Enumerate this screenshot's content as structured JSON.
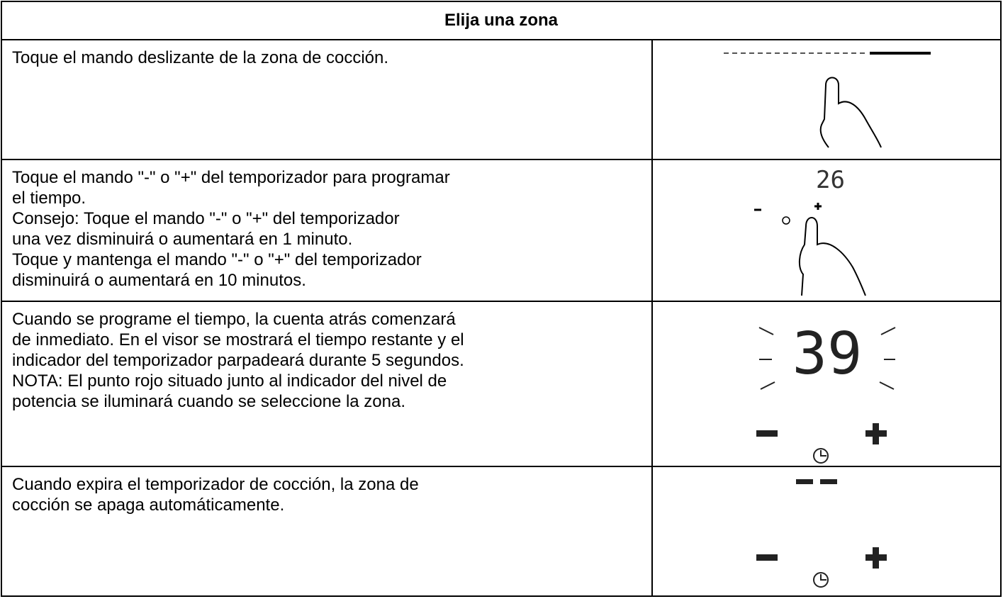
{
  "header": {
    "title": "Elija una zona"
  },
  "rows": [
    {
      "lines": [
        "Toque el mando deslizante de la zona de cocción."
      ]
    },
    {
      "lines": [
        "Toque el mando \"-\" o \"+\" del temporizador para programar",
        "el tiempo.",
        "Consejo: Toque el mando \"-\" o \"+\" del temporizador",
        "una vez disminuirá o aumentará en 1 minuto.",
        "Toque y mantenga el mando \"-\" o \"+\" del temporizador",
        "disminuirá o aumentará en 10 minutos."
      ],
      "display": "26"
    },
    {
      "lines": [
        "Cuando se programe el tiempo, la cuenta atrás comenzará",
        "de inmediato. En el visor se mostrará el tiempo restante y el",
        "indicador del temporizador parpadeará durante 5 segundos.",
        "NOTA: El punto rojo situado junto al indicador del nivel de",
        "potencia se iluminará cuando se seleccione la zona."
      ],
      "display": "39"
    },
    {
      "lines": [
        "Cuando expira el temporizador de cocción, la zona de",
        "cocción se apaga automáticamente."
      ]
    }
  ]
}
